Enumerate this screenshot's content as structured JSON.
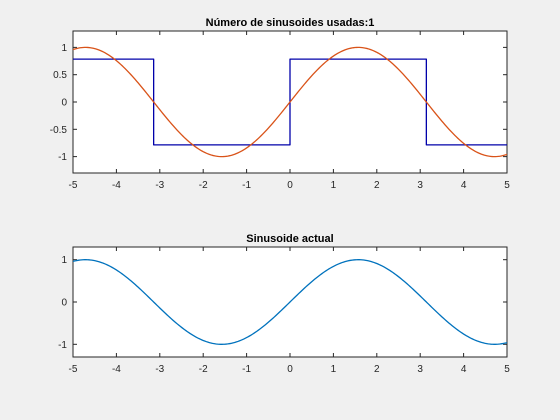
{
  "chart_data": [
    {
      "type": "line",
      "title": "Número de sinusoides usadas:1",
      "xlabel": "",
      "ylabel": "",
      "xlim": [
        -5,
        5
      ],
      "ylim": [
        -1.3,
        1.3
      ],
      "x_ticks": [
        "-5",
        "-4",
        "-3",
        "-2",
        "-1",
        "0",
        "1",
        "2",
        "3",
        "4",
        "5"
      ],
      "y_ticks": [
        "1",
        "0.5",
        "0",
        "-0.5",
        "-1"
      ],
      "y_tick_values": [
        1,
        0.5,
        0,
        -0.5,
        -1
      ],
      "grid": false,
      "series": [
        {
          "kind": "square-wave",
          "color": "#0000aa",
          "x": [
            -5,
            -3.1416,
            -3.1416,
            0,
            0,
            3.1416,
            3.1416,
            5
          ],
          "values": [
            0.785,
            0.785,
            -0.785,
            -0.785,
            0.785,
            0.785,
            -0.785,
            -0.785
          ]
        },
        {
          "kind": "sine",
          "color": "#d95319",
          "function": "sin(x)",
          "x_range": [
            -5,
            5
          ]
        }
      ]
    },
    {
      "type": "line",
      "title": "Sinusoide actual",
      "xlabel": "",
      "ylabel": "",
      "xlim": [
        -5,
        5
      ],
      "ylim": [
        -1.3,
        1.3
      ],
      "x_ticks": [
        "-5",
        "-4",
        "-3",
        "-2",
        "-1",
        "0",
        "1",
        "2",
        "3",
        "4",
        "5"
      ],
      "y_ticks": [
        "1",
        "0",
        "-1"
      ],
      "y_tick_values": [
        1,
        0,
        -1
      ],
      "grid": false,
      "series": [
        {
          "kind": "sine",
          "color": "#0072bd",
          "function": "sin(x)",
          "x_range": [
            -5,
            5
          ]
        }
      ]
    }
  ]
}
